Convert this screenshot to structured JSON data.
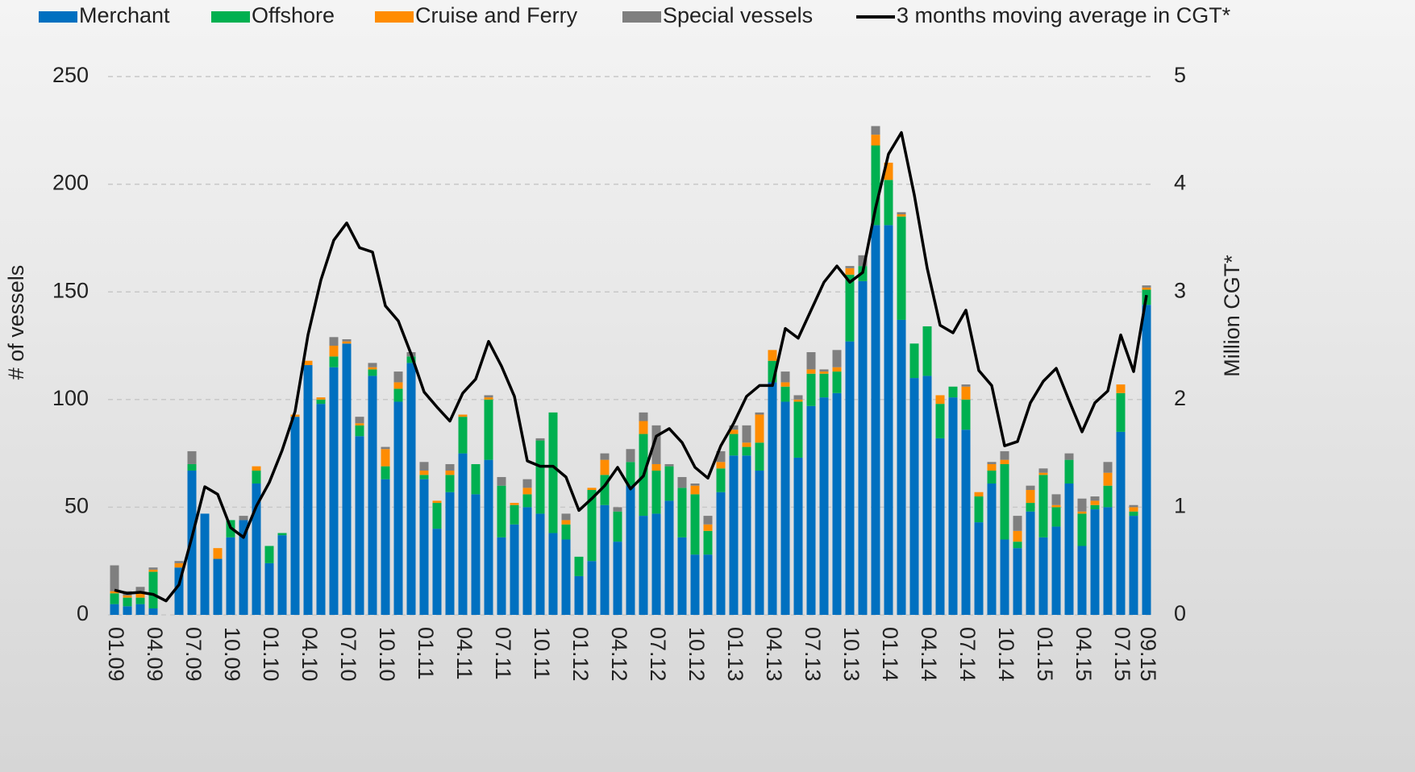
{
  "chart_data": {
    "type": "bar",
    "stacked": true,
    "categories": [
      "01.09",
      null,
      null,
      "04.09",
      null,
      null,
      "07.09",
      null,
      null,
      "10.09",
      null,
      null,
      "01.10",
      null,
      null,
      "04.10",
      null,
      null,
      "07.10",
      null,
      null,
      "10.10",
      null,
      null,
      "01.11",
      null,
      null,
      "04.11",
      null,
      null,
      "07.11",
      null,
      null,
      "10.11",
      null,
      null,
      "01.12",
      null,
      null,
      "04.12",
      null,
      null,
      "07.12",
      null,
      null,
      "10.12",
      null,
      null,
      "01.13",
      null,
      null,
      "04.13",
      null,
      null,
      "07.13",
      null,
      null,
      "10.13",
      null,
      null,
      "01.14",
      null,
      null,
      "04.14",
      null,
      null,
      "07.14",
      null,
      null,
      "10.14",
      null,
      null,
      "01.15",
      null,
      null,
      "04.15",
      null,
      null,
      "07.15",
      null,
      "09.15"
    ],
    "series": [
      {
        "name": "Merchant",
        "color": "#0070c0",
        "values": [
          5,
          4,
          5,
          3,
          0,
          22,
          67,
          47,
          26,
          36,
          44,
          61,
          24,
          37,
          92,
          116,
          98,
          115,
          126,
          83,
          111,
          63,
          99,
          117,
          63,
          40,
          57,
          75,
          56,
          72,
          36,
          42,
          50,
          47,
          38,
          35,
          18,
          25,
          51,
          34,
          60,
          46,
          47,
          53,
          36,
          28,
          28,
          57,
          74,
          74,
          67,
          108,
          99,
          73,
          97,
          101,
          103,
          127,
          155,
          181,
          181,
          137,
          110,
          111,
          82,
          101,
          86,
          43,
          61,
          35,
          31,
          48,
          36,
          41,
          61,
          32,
          49,
          50,
          85,
          46,
          144
        ]
      },
      {
        "name": "Offshore",
        "color": "#00b050",
        "values": [
          5,
          4,
          3,
          17,
          0,
          0,
          3,
          0,
          0,
          8,
          0,
          6,
          8,
          1,
          0,
          0,
          2,
          5,
          0,
          5,
          3,
          6,
          6,
          3,
          2,
          12,
          8,
          17,
          14,
          28,
          24,
          9,
          6,
          34,
          56,
          7,
          9,
          33,
          14,
          14,
          11,
          38,
          20,
          16,
          23,
          28,
          11,
          11,
          10,
          4,
          13,
          10,
          7,
          26,
          15,
          11,
          10,
          31,
          7,
          37,
          21,
          48,
          16,
          23,
          16,
          5,
          14,
          12,
          6,
          35,
          3,
          4,
          29,
          9,
          11,
          15,
          2,
          10,
          18,
          2,
          7
        ]
      },
      {
        "name": "Cruise and Ferry",
        "color": "#ff8c00",
        "values": [
          1,
          1,
          2,
          1,
          0,
          2,
          0,
          0,
          5,
          0,
          0,
          2,
          0,
          0,
          1,
          2,
          1,
          5,
          1,
          1,
          1,
          8,
          3,
          0,
          2,
          1,
          2,
          1,
          0,
          1,
          0,
          1,
          3,
          0,
          0,
          2,
          0,
          1,
          7,
          0,
          0,
          6,
          3,
          0,
          0,
          4,
          3,
          3,
          2,
          2,
          13,
          5,
          2,
          1,
          2,
          1,
          2,
          3,
          0,
          5,
          8,
          1,
          0,
          0,
          4,
          0,
          6,
          2,
          3,
          2,
          5,
          6,
          1,
          1,
          0,
          1,
          2,
          6,
          4,
          2,
          1
        ]
      },
      {
        "name": "Special vessels",
        "color": "#7f7f7f",
        "values": [
          12,
          2,
          3,
          1,
          0,
          1,
          6,
          0,
          0,
          0,
          2,
          0,
          0,
          0,
          0,
          0,
          0,
          4,
          1,
          3,
          2,
          1,
          5,
          2,
          4,
          0,
          3,
          0,
          0,
          1,
          4,
          0,
          4,
          1,
          0,
          3,
          0,
          0,
          3,
          2,
          6,
          4,
          18,
          1,
          5,
          1,
          4,
          5,
          2,
          8,
          1,
          0,
          5,
          2,
          8,
          1,
          8,
          1,
          5,
          4,
          0,
          1,
          0,
          0,
          0,
          0,
          1,
          0,
          1,
          4,
          7,
          2,
          2,
          5,
          3,
          6,
          2,
          5,
          0,
          1,
          1
        ]
      },
      {
        "name": "3 months moving average in CGT*",
        "color": "#000000",
        "type": "line",
        "axis": "y2",
        "values": [
          0.23,
          0.2,
          0.21,
          0.19,
          0.13,
          0.28,
          0.72,
          1.19,
          1.12,
          0.81,
          0.72,
          1.01,
          1.23,
          1.53,
          1.89,
          2.6,
          3.11,
          3.48,
          3.64,
          3.41,
          3.37,
          2.87,
          2.73,
          2.42,
          2.07,
          1.93,
          1.8,
          2.06,
          2.19,
          2.54,
          2.31,
          2.03,
          1.43,
          1.38,
          1.38,
          1.28,
          0.97,
          1.08,
          1.2,
          1.37,
          1.17,
          1.29,
          1.66,
          1.73,
          1.6,
          1.37,
          1.27,
          1.57,
          1.78,
          2.03,
          2.13,
          2.13,
          2.66,
          2.57,
          2.83,
          3.09,
          3.24,
          3.09,
          3.18,
          3.78,
          4.28,
          4.48,
          3.9,
          3.22,
          2.69,
          2.62,
          2.83,
          2.27,
          2.13,
          1.57,
          1.61,
          1.97,
          2.17,
          2.29,
          1.99,
          1.7,
          1.97,
          2.08,
          2.6,
          2.26,
          2.97
        ]
      }
    ],
    "ylabel": "# of vessels",
    "y2label": "Million CGT*",
    "ylim": [
      0,
      250
    ],
    "yticks": [
      0,
      50,
      100,
      150,
      200,
      250
    ],
    "y2lim": [
      0,
      5
    ],
    "y2ticks": [
      0,
      1,
      2,
      3,
      4,
      5
    ],
    "grid": true,
    "legend": "top"
  }
}
